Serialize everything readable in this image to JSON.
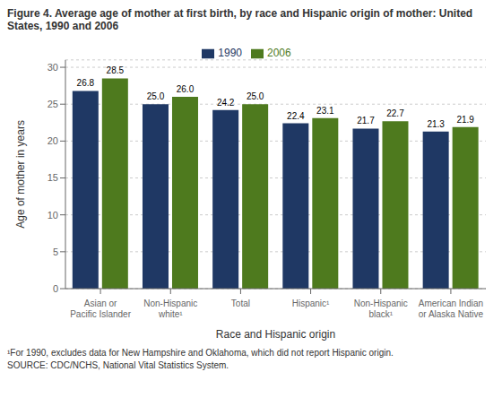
{
  "chart_data": {
    "type": "bar",
    "title": "Figure 4. Average age of mother at first birth, by race and Hispanic origin of mother: United States, 1990 and 2006",
    "categories": [
      "Asian or\nPacific Islander",
      "Non-Hispanic\nwhite¹",
      "Total",
      "Hispanic¹",
      "Non-Hispanic\nblack¹",
      "American Indian\nor Alaska Native"
    ],
    "series": [
      {
        "name": "1990",
        "color": "#1f3864",
        "values": [
          26.8,
          25.0,
          24.2,
          22.4,
          21.7,
          21.3
        ],
        "value_labels": [
          "26.8",
          "25.0",
          "24.2",
          "22.4",
          "21.7",
          "21.3"
        ]
      },
      {
        "name": "2006",
        "color": "#4e7a1e",
        "values": [
          28.5,
          26.0,
          25.0,
          23.1,
          22.7,
          21.9
        ],
        "value_labels": [
          "28.5",
          "26.0",
          "25.0",
          "23.1",
          "22.7",
          "21.9"
        ]
      }
    ],
    "xlabel": "Race and Hispanic origin",
    "ylabel": "Age of mother in years",
    "ylim": [
      0,
      31
    ],
    "yticks": [
      0,
      5,
      10,
      15,
      20,
      25,
      30
    ],
    "grid": true,
    "legend": "top",
    "data_labels": true,
    "annotations": [
      "¹For 1990, excludes data for New Hampshire and Oklahoma, which did not report Hispanic origin.",
      "SOURCE: CDC/NCHS, National Vital Statistics System."
    ]
  }
}
